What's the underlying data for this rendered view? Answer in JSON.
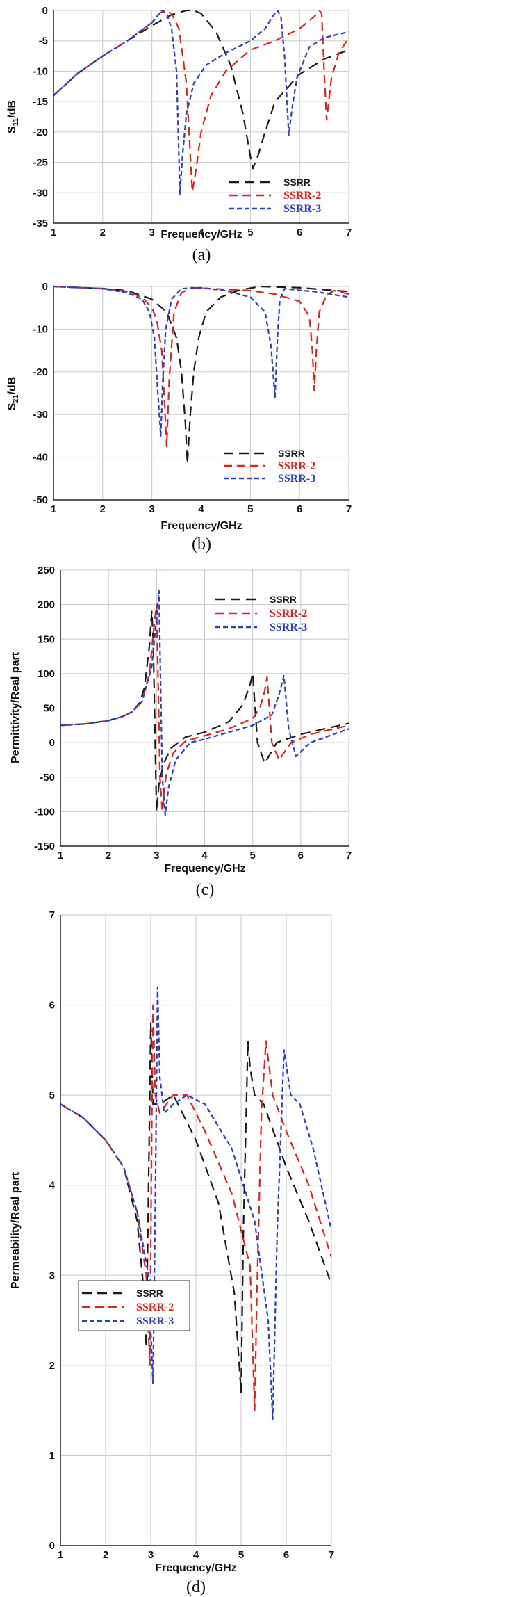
{
  "colors": {
    "SSRR": "#1a1a1a",
    "SSRR-2": "#e0241b",
    "SSRR-3": "#2b3fc8",
    "grid": "#c8c8c8"
  },
  "chart_data": [
    {
      "id": "a",
      "type": "line",
      "caption": "(a)",
      "xlabel": "Frequency/GHz",
      "ylabel": "S11/dB",
      "ylabel_main": "S",
      "ylabel_sub": "11",
      "ylabel_unit": "/dB",
      "xlim": [
        1,
        7
      ],
      "ylim": [
        -35,
        0
      ],
      "xticks": [
        1,
        2,
        3,
        4,
        5,
        6,
        7
      ],
      "yticks": [
        -35,
        -30,
        -25,
        -20,
        -15,
        -10,
        -5,
        0
      ],
      "legend": {
        "position": "bottom-right",
        "entries": [
          "SSRR",
          "SSRR-2",
          "SSRR-3"
        ]
      },
      "series": [
        {
          "name": "SSRR",
          "x": [
            1,
            1.5,
            2,
            2.5,
            3,
            3.4,
            3.7,
            3.85,
            4,
            4.3,
            4.6,
            4.85,
            5.0,
            5.05,
            5.15,
            5.3,
            5.5,
            6,
            6.5,
            7
          ],
          "values": [
            -14,
            -10.3,
            -7.5,
            -5,
            -2.5,
            -0.7,
            0,
            0,
            -0.5,
            -3.5,
            -9,
            -17,
            -24,
            -26,
            -24,
            -20,
            -15,
            -10.5,
            -8,
            -6.5
          ]
        },
        {
          "name": "SSRR-2",
          "x": [
            1,
            1.5,
            2,
            2.5,
            3,
            3.15,
            3.25,
            3.4,
            3.55,
            3.7,
            3.82,
            3.9,
            4.0,
            4.2,
            4.5,
            5,
            5.5,
            6,
            6.3,
            6.4,
            6.45,
            6.5,
            6.55,
            6.65,
            6.8,
            7
          ],
          "values": [
            -14,
            -10.3,
            -7.5,
            -5,
            -2,
            -0.5,
            0,
            -0.5,
            -3,
            -12,
            -29.8,
            -26,
            -20,
            -14,
            -10,
            -6.5,
            -5,
            -3,
            -1,
            0,
            -0.5,
            -10,
            -18,
            -11,
            -7,
            -4.5
          ]
        },
        {
          "name": "SSRR-3",
          "x": [
            1,
            1.5,
            2,
            2.5,
            3,
            3.1,
            3.2,
            3.3,
            3.4,
            3.5,
            3.57,
            3.62,
            3.7,
            3.85,
            4.1,
            4.5,
            5,
            5.3,
            5.45,
            5.55,
            5.62,
            5.7,
            5.78,
            5.85,
            5.95,
            6.2,
            6.5,
            7
          ],
          "values": [
            -14,
            -10.3,
            -7.5,
            -5,
            -2,
            -1,
            0,
            -0.5,
            -3,
            -10,
            -30.2,
            -24,
            -17,
            -12,
            -9,
            -7,
            -5,
            -3,
            -1,
            0,
            -1,
            -8,
            -20.5,
            -16,
            -11,
            -6,
            -4.5,
            -3.5
          ]
        }
      ]
    },
    {
      "id": "b",
      "type": "line",
      "caption": "(b)",
      "xlabel": "Frequency/GHz",
      "ylabel": "S21/dB",
      "ylabel_main": "S",
      "ylabel_sub": "21",
      "ylabel_unit": "/dB",
      "xlim": [
        1,
        7
      ],
      "ylim": [
        -50,
        0
      ],
      "xticks": [
        1,
        2,
        3,
        4,
        5,
        6,
        7
      ],
      "yticks": [
        -50,
        -40,
        -30,
        -20,
        -10,
        0
      ],
      "legend": {
        "position": "bottom-right",
        "entries": [
          "SSRR",
          "SSRR-2",
          "SSRR-3"
        ]
      },
      "series": [
        {
          "name": "SSRR",
          "x": [
            1,
            2,
            2.5,
            3,
            3.3,
            3.5,
            3.6,
            3.68,
            3.72,
            3.78,
            3.85,
            3.95,
            4.1,
            4.4,
            4.8,
            5.2,
            6,
            7
          ],
          "values": [
            0,
            -0.5,
            -1,
            -3,
            -6,
            -12,
            -20,
            -32,
            -41.5,
            -30,
            -20,
            -12,
            -6,
            -2.5,
            -0.8,
            0,
            -0.3,
            -1.2
          ]
        },
        {
          "name": "SSRR-2",
          "x": [
            1,
            2,
            2.5,
            2.8,
            3.0,
            3.1,
            3.2,
            3.26,
            3.3,
            3.35,
            3.45,
            3.6,
            3.8,
            4.2,
            5,
            5.5,
            6,
            6.2,
            6.26,
            6.3,
            6.34,
            6.4,
            6.55,
            6.7,
            7
          ],
          "values": [
            0,
            -0.5,
            -1.2,
            -2.5,
            -5,
            -8,
            -15,
            -28,
            -37.5,
            -22,
            -6,
            -1.5,
            -0.3,
            -0.5,
            -1,
            -1.8,
            -3.5,
            -7,
            -15,
            -24.5,
            -15,
            -6,
            -2,
            -1,
            -1.8
          ]
        },
        {
          "name": "SSRR-3",
          "x": [
            1,
            2,
            2.5,
            2.8,
            2.95,
            3.05,
            3.12,
            3.18,
            3.22,
            3.28,
            3.4,
            3.6,
            4,
            4.5,
            5,
            5.3,
            5.42,
            5.5,
            5.55,
            5.6,
            5.7,
            5.9,
            6.3,
            7
          ],
          "values": [
            0,
            -0.5,
            -1.5,
            -3,
            -6,
            -12,
            -25,
            -35,
            -22,
            -10,
            -3,
            -0.5,
            -0.3,
            -1,
            -2.5,
            -6,
            -14,
            -26,
            -12,
            -3,
            -0.5,
            -0.8,
            -1.2,
            -2.5
          ]
        }
      ]
    },
    {
      "id": "c",
      "type": "line",
      "caption": "(c)",
      "xlabel": "Frequency/GHz",
      "ylabel": "Permittivity/Real part",
      "xlim": [
        1,
        7
      ],
      "ylim": [
        -150,
        250
      ],
      "xticks": [
        1,
        2,
        3,
        4,
        5,
        6,
        7
      ],
      "yticks": [
        -150,
        -100,
        -50,
        0,
        50,
        100,
        150,
        200,
        250
      ],
      "legend": {
        "position": "top-right",
        "entries": [
          "SSRR",
          "SSRR-2",
          "SSRR-3"
        ]
      },
      "series": [
        {
          "name": "SSRR",
          "x": [
            1,
            1.5,
            2,
            2.3,
            2.5,
            2.65,
            2.75,
            2.85,
            2.9,
            2.93,
            2.97,
            3.0,
            3.05,
            3.15,
            3.3,
            3.6,
            4,
            4.5,
            4.8,
            4.95,
            5.0,
            5.1,
            5.25,
            5.5,
            6,
            7
          ],
          "values": [
            25,
            27,
            32,
            38,
            45,
            58,
            80,
            140,
            190,
            150,
            0,
            -100,
            -60,
            -30,
            -8,
            8,
            15,
            30,
            55,
            85,
            100,
            0,
            -30,
            0,
            12,
            28
          ]
        },
        {
          "name": "SSRR-2",
          "x": [
            1,
            1.5,
            2,
            2.3,
            2.5,
            2.7,
            2.85,
            2.95,
            3.0,
            3.03,
            3.07,
            3.12,
            3.2,
            3.35,
            3.6,
            4,
            4.5,
            5,
            5.15,
            5.25,
            5.3,
            5.4,
            5.55,
            5.8,
            6.2,
            7
          ],
          "values": [
            25,
            27,
            32,
            38,
            45,
            60,
            100,
            170,
            200,
            100,
            -50,
            -100,
            -45,
            -15,
            2,
            10,
            20,
            35,
            50,
            75,
            95,
            0,
            -25,
            0,
            12,
            25
          ]
        },
        {
          "name": "SSRR-3",
          "x": [
            1,
            1.5,
            2,
            2.3,
            2.5,
            2.7,
            2.9,
            3.0,
            3.05,
            3.08,
            3.12,
            3.18,
            3.25,
            3.4,
            3.7,
            4,
            4.5,
            5,
            5.4,
            5.55,
            5.65,
            5.75,
            5.9,
            6.2,
            6.6,
            7
          ],
          "values": [
            25,
            27,
            32,
            38,
            45,
            60,
            110,
            180,
            220,
            100,
            -50,
            -105,
            -65,
            -25,
            0,
            5,
            15,
            25,
            40,
            70,
            97,
            20,
            -20,
            0,
            10,
            20
          ]
        }
      ]
    },
    {
      "id": "d",
      "type": "line",
      "caption": "(d)",
      "xlabel": "Frequency/GHz",
      "ylabel": "Permeability/Real part",
      "xlim": [
        1,
        7
      ],
      "ylim": [
        0,
        7
      ],
      "xticks": [
        1,
        2,
        3,
        4,
        5,
        6,
        7
      ],
      "yticks": [
        0,
        1,
        2,
        3,
        4,
        5,
        6,
        7
      ],
      "legend": {
        "position": "bottom-left",
        "entries": [
          "SSRR",
          "SSRR-2",
          "SSRR-3"
        ]
      },
      "series": [
        {
          "name": "SSRR",
          "x": [
            1,
            1.5,
            2,
            2.4,
            2.7,
            2.85,
            2.9,
            2.95,
            3.0,
            3.05,
            3.2,
            3.5,
            4,
            4.5,
            4.85,
            5.0,
            5.05,
            5.15,
            5.2,
            5.3,
            5.5,
            6,
            6.5,
            7
          ],
          "values": [
            4.9,
            4.75,
            4.5,
            4.2,
            3.6,
            2.8,
            2.2,
            4.0,
            5.8,
            4.9,
            4.9,
            5.0,
            4.5,
            3.8,
            2.8,
            1.7,
            3.5,
            5.6,
            5.3,
            5.0,
            4.9,
            4.2,
            3.6,
            2.9
          ]
        },
        {
          "name": "SSRR-2",
          "x": [
            1,
            1.5,
            2,
            2.4,
            2.7,
            2.9,
            2.98,
            3.02,
            3.05,
            3.1,
            3.2,
            3.5,
            3.8,
            4.2,
            4.8,
            5.2,
            5.3,
            5.35,
            5.45,
            5.55,
            5.7,
            6,
            6.5,
            7
          ],
          "values": [
            4.9,
            4.75,
            4.5,
            4.2,
            3.7,
            3.0,
            2.0,
            4.5,
            6.0,
            5.0,
            4.8,
            5.0,
            5.0,
            4.6,
            3.9,
            3.1,
            1.5,
            2.8,
            4.8,
            5.6,
            5.0,
            4.6,
            4.0,
            3.2
          ]
        },
        {
          "name": "SSRR-3",
          "x": [
            1,
            1.5,
            2,
            2.4,
            2.7,
            2.95,
            3.05,
            3.1,
            3.15,
            3.2,
            3.3,
            3.5,
            3.8,
            4.2,
            4.8,
            5.3,
            5.6,
            5.7,
            5.8,
            5.95,
            6.1,
            6.3,
            6.6,
            7
          ],
          "values": [
            4.9,
            4.75,
            4.5,
            4.2,
            3.7,
            3.0,
            1.8,
            3.8,
            6.2,
            5.2,
            4.8,
            4.9,
            5.0,
            4.9,
            4.4,
            3.6,
            2.5,
            1.4,
            3.5,
            5.5,
            5.0,
            4.9,
            4.4,
            3.5
          ]
        }
      ]
    }
  ]
}
